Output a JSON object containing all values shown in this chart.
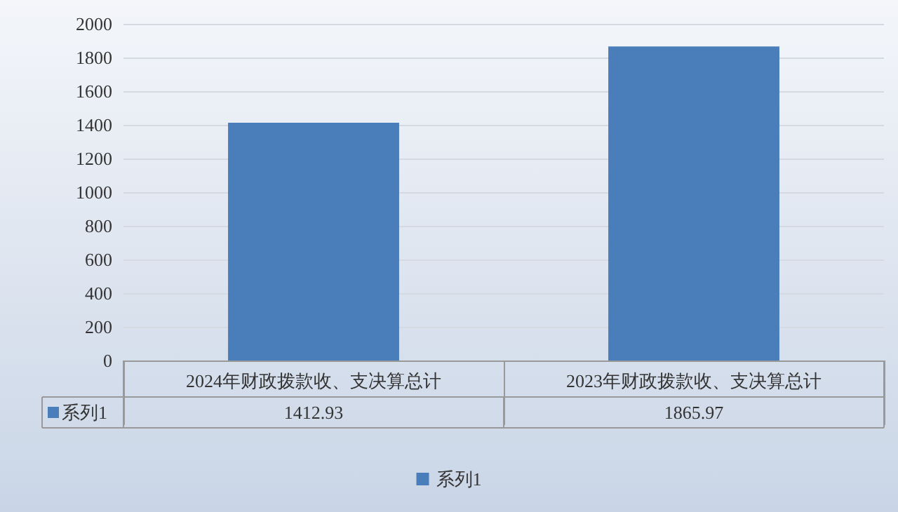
{
  "chart_data": {
    "type": "bar",
    "categories": [
      "2024年财政拨款收、支决算总计",
      "2023年财政拨款收、支决算总计"
    ],
    "series": [
      {
        "name": "系列1",
        "color": "#4a7ebb",
        "values": [
          1412.93,
          1865.97
        ]
      }
    ],
    "ylim": [
      0,
      2000
    ],
    "yticks": [
      0,
      200,
      400,
      600,
      800,
      1000,
      1200,
      1400,
      1600,
      1800,
      2000
    ],
    "grid": "y",
    "legend": "bottom",
    "data_labels": true
  }
}
